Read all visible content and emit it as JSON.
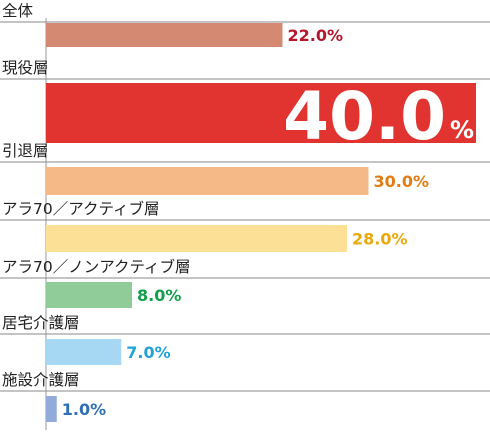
{
  "chart_data": {
    "type": "bar",
    "orientation": "horizontal",
    "categories": [
      "全体",
      "現役層",
      "引退層",
      "アラ70／アクティブ層",
      "アラ70／ノンアクティブ層",
      "居宅介護層",
      "施設介護層"
    ],
    "values": [
      22.0,
      40.0,
      30.0,
      28.0,
      8.0,
      7.0,
      1.0
    ],
    "value_labels": [
      "22.0%",
      "40.0",
      "30.0%",
      "28.0%",
      "8.0%",
      "7.0%",
      "1.0%"
    ],
    "highlight_index": 1,
    "highlight_suffix": "%",
    "bar_colors": [
      "#d48a72",
      "#e13430",
      "#f5b887",
      "#fbe095",
      "#8fcc99",
      "#a6d8f4",
      "#93abd8"
    ],
    "label_colors": [
      "#b5172c",
      "#ffffff",
      "#e07d14",
      "#e8a90c",
      "#13a04a",
      "#20a4d8",
      "#2e6fb5"
    ],
    "xlim": [
      0,
      40
    ],
    "grid": false
  }
}
